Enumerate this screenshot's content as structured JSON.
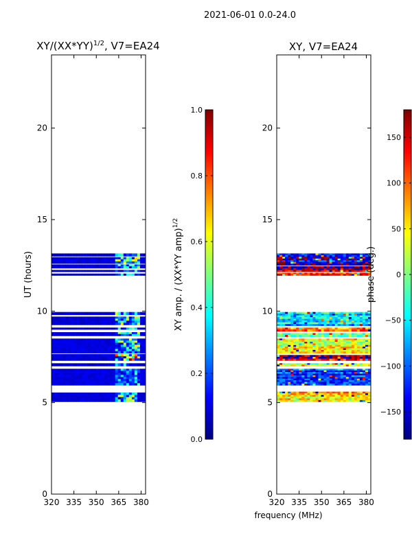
{
  "suptitle": "2021-06-01 0.0-24.0",
  "colors": {
    "background": "#ffffff",
    "frame": "#000000",
    "jet": [
      "#00007f",
      "#0000ff",
      "#007fff",
      "#00ffff",
      "#7fff7f",
      "#ffff00",
      "#ff7f00",
      "#ff0000",
      "#7f0000"
    ]
  },
  "chart_data": [
    {
      "type": "heatmap",
      "title_main": "XY/(XX*YY)",
      "title_power": "1/2",
      "title_rest": ", V7=EA24",
      "xlabel": "",
      "ylabel": "UT (hours)",
      "xlim": [
        320,
        383
      ],
      "ylim": [
        0,
        24
      ],
      "xticks": [
        320,
        335,
        350,
        365,
        380
      ],
      "xtick_labels": [
        "320",
        "335",
        "350",
        "365",
        "380"
      ],
      "yticks": [
        0,
        5,
        10,
        15,
        20
      ],
      "ytick_labels": [
        "0",
        "5",
        "10",
        "15",
        "20"
      ],
      "data_blocks": [
        {
          "t0": 5.05,
          "t1": 5.55,
          "base": 0.06,
          "rfi": 0.45
        },
        {
          "t0": 5.95,
          "t1": 6.85,
          "base": 0.07,
          "rfi": 0.35
        },
        {
          "t0": 7.0,
          "t1": 7.15,
          "base": 0.05,
          "rfi": 0.3
        },
        {
          "t0": 7.3,
          "t1": 7.65,
          "base": 0.06,
          "rfi": 0.7
        },
        {
          "t0": 7.7,
          "t1": 8.5,
          "base": 0.07,
          "rfi": 0.45
        },
        {
          "t0": 8.65,
          "t1": 8.85,
          "base": 0.06,
          "rfi": 0.4
        },
        {
          "t0": 9.0,
          "t1": 9.1,
          "base": 0.05,
          "rfi": 0.35
        },
        {
          "t0": 9.25,
          "t1": 9.7,
          "base": 0.06,
          "rfi": 0.45
        },
        {
          "t0": 9.8,
          "t1": 9.95,
          "base": 0.06,
          "rfi": 0.4
        },
        {
          "t0": 11.95,
          "t1": 12.05,
          "base": 0.05,
          "rfi": 0.3
        },
        {
          "t0": 12.15,
          "t1": 12.25,
          "base": 0.05,
          "rfi": 0.35
        },
        {
          "t0": 12.35,
          "t1": 12.55,
          "base": 0.06,
          "rfi": 0.4
        },
        {
          "t0": 12.6,
          "t1": 12.95,
          "base": 0.07,
          "rfi": 0.45
        },
        {
          "t0": 13.0,
          "t1": 13.15,
          "base": 0.05,
          "rfi": 0.35
        }
      ],
      "rfi_band_mhz": [
        362,
        380
      ],
      "colorbar": {
        "label_main": "XY amp. / (XX*YY amp)",
        "label_power": "1/2",
        "range": [
          0.0,
          1.0
        ],
        "ticks": [
          0.0,
          0.2,
          0.4,
          0.6,
          0.8,
          1.0
        ],
        "tick_labels": [
          "0.0",
          "0.2",
          "0.4",
          "0.6",
          "0.8",
          "1.0"
        ]
      }
    },
    {
      "type": "heatmap",
      "title_main": "XY, V7=EA24",
      "title_power": "",
      "title_rest": "",
      "xlabel": "frequency (MHz)",
      "ylabel": "",
      "xlim": [
        320,
        383
      ],
      "ylim": [
        0,
        24
      ],
      "xticks": [
        320,
        335,
        350,
        365,
        380
      ],
      "xtick_labels": [
        "320",
        "335",
        "350",
        "365",
        "380"
      ],
      "yticks": [
        0,
        5,
        10,
        15,
        20
      ],
      "ytick_labels": [
        "0",
        "5",
        "10",
        "15",
        "20"
      ],
      "data_blocks": [
        {
          "t0": 5.05,
          "t1": 5.6,
          "phase": 60
        },
        {
          "t0": 5.95,
          "t1": 6.85,
          "phase": -110
        },
        {
          "t0": 7.0,
          "t1": 7.15,
          "phase": 20
        },
        {
          "t0": 7.3,
          "t1": 7.6,
          "phase": 150
        },
        {
          "t0": 7.7,
          "t1": 8.5,
          "phase": 40
        },
        {
          "t0": 8.6,
          "t1": 8.8,
          "phase": -30
        },
        {
          "t0": 8.9,
          "t1": 9.1,
          "phase": 90
        },
        {
          "t0": 9.2,
          "t1": 9.95,
          "phase": -60
        },
        {
          "t0": 11.95,
          "t1": 12.1,
          "phase": 120
        },
        {
          "t0": 12.15,
          "t1": 12.45,
          "phase": 160
        },
        {
          "t0": 12.5,
          "t1": 13.15,
          "phase": -140
        }
      ],
      "colorbar": {
        "label_main": "phase (deg.)",
        "label_power": "",
        "range": [
          -180,
          180
        ],
        "ticks": [
          -150,
          -100,
          -50,
          0,
          50,
          100,
          150
        ],
        "tick_labels": [
          "−150",
          "−100",
          "−50",
          "0",
          "50",
          "100",
          "150"
        ]
      }
    }
  ]
}
